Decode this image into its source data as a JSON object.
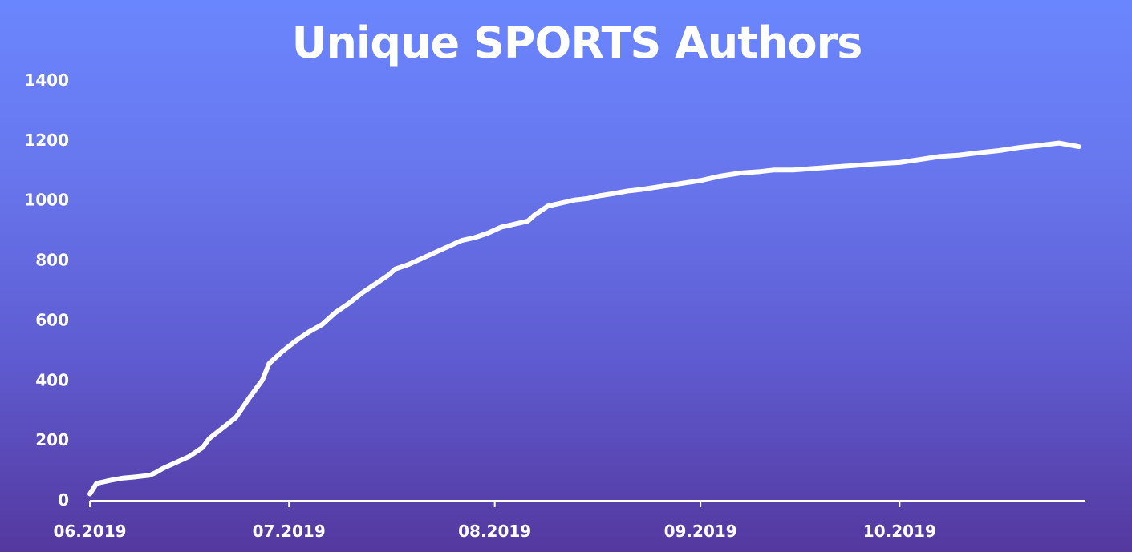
{
  "chart_data": {
    "type": "line",
    "title": "Unique SPORTS Authors",
    "xlabel": "",
    "ylabel": "",
    "ylim": [
      0,
      1400
    ],
    "yticks": [
      0,
      200,
      400,
      600,
      800,
      1000,
      1200,
      1400
    ],
    "xlim": [
      "2019-06-01",
      "2019-10-29"
    ],
    "xticks": [
      {
        "date": "2019-06-01",
        "label": "06.2019"
      },
      {
        "date": "2019-07-01",
        "label": "07.2019"
      },
      {
        "date": "2019-08-01",
        "label": "08.2019"
      },
      {
        "date": "2019-09-01",
        "label": "09.2019"
      },
      {
        "date": "2019-10-01",
        "label": "10.2019"
      }
    ],
    "grid": false,
    "legend": "none",
    "line_color": "#ffffff",
    "series": [
      {
        "name": "",
        "x": [
          "2019-06-01",
          "2019-06-02",
          "2019-06-04",
          "2019-06-06",
          "2019-06-08",
          "2019-06-10",
          "2019-06-11",
          "2019-06-12",
          "2019-06-14",
          "2019-06-16",
          "2019-06-18",
          "2019-06-19",
          "2019-06-21",
          "2019-06-23",
          "2019-06-25",
          "2019-06-27",
          "2019-06-28",
          "2019-06-30",
          "2019-07-02",
          "2019-07-04",
          "2019-07-06",
          "2019-07-08",
          "2019-07-10",
          "2019-07-12",
          "2019-07-14",
          "2019-07-16",
          "2019-07-17",
          "2019-07-19",
          "2019-07-21",
          "2019-07-23",
          "2019-07-25",
          "2019-07-27",
          "2019-07-29",
          "2019-07-31",
          "2019-08-02",
          "2019-08-04",
          "2019-08-06",
          "2019-08-07",
          "2019-08-09",
          "2019-08-11",
          "2019-08-13",
          "2019-08-15",
          "2019-08-17",
          "2019-08-19",
          "2019-08-21",
          "2019-08-23",
          "2019-08-26",
          "2019-08-29",
          "2019-09-01",
          "2019-09-04",
          "2019-09-07",
          "2019-09-10",
          "2019-09-12",
          "2019-09-15",
          "2019-09-18",
          "2019-09-21",
          "2019-09-24",
          "2019-09-27",
          "2019-10-01",
          "2019-10-04",
          "2019-10-07",
          "2019-10-10",
          "2019-10-13",
          "2019-10-16",
          "2019-10-19",
          "2019-10-22",
          "2019-10-25",
          "2019-10-28"
        ],
        "values": [
          20,
          55,
          65,
          73,
          77,
          82,
          92,
          105,
          125,
          145,
          175,
          205,
          240,
          275,
          340,
          400,
          455,
          495,
          530,
          560,
          585,
          625,
          655,
          690,
          720,
          750,
          770,
          785,
          805,
          825,
          845,
          865,
          875,
          890,
          910,
          920,
          930,
          950,
          980,
          990,
          1000,
          1005,
          1015,
          1022,
          1030,
          1035,
          1045,
          1055,
          1065,
          1080,
          1090,
          1095,
          1100,
          1100,
          1105,
          1110,
          1115,
          1120,
          1125,
          1135,
          1145,
          1150,
          1158,
          1165,
          1175,
          1182,
          1190,
          1178
        ]
      }
    ]
  }
}
